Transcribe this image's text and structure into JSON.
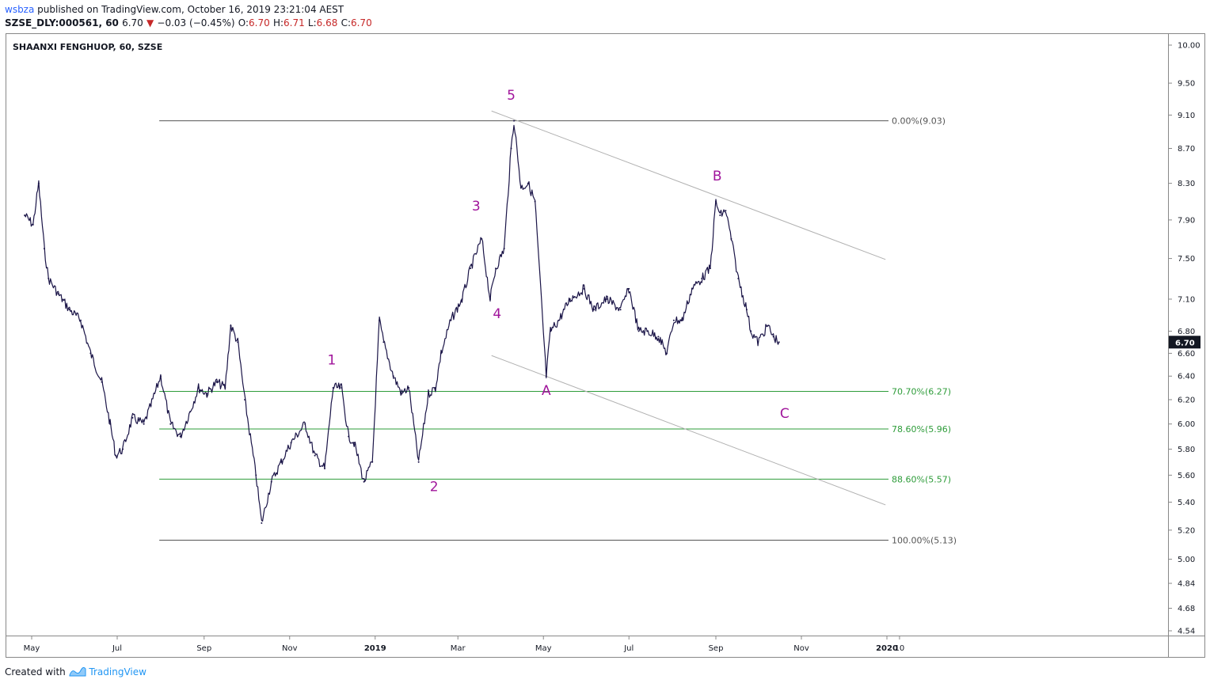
{
  "header": {
    "user": "wsbza",
    "published": "published on TradingView.com, October 16, 2019 23:21:04 AEST",
    "symbol_line": "SZSE_DLY:000561, 60",
    "last": "6.70",
    "change_arrow": "▼",
    "change": "−0.03 (−0.45%)",
    "o_label": "O:",
    "o": "6.70",
    "h_label": "H:",
    "h": "6.71",
    "l_label": "L:",
    "l": "6.68",
    "c_label": "C:",
    "c": "6.70"
  },
  "chart_title": "SHAANXI FENGHUOP, 60, SZSE",
  "footer": {
    "created": "Created with",
    "brand": "TradingView"
  },
  "colors": {
    "candle": "#1a1447",
    "wave": "#a0149b",
    "fib_green": "#2e9c3a",
    "fib_gray": "#555555",
    "channel": "#b0b0b0",
    "price_tag": "#131722"
  },
  "chart_data": {
    "type": "line",
    "title": "SHAANXI FENGHUOP, 60, SZSE",
    "xlabel": "",
    "ylabel": "",
    "ylim": [
      4.54,
      10.0
    ],
    "y_scale": "log",
    "y_ticks": [
      "10.00",
      "9.50",
      "9.10",
      "8.70",
      "8.30",
      "7.90",
      "7.50",
      "7.10",
      "6.80",
      "6.60",
      "6.40",
      "6.20",
      "6.00",
      "5.80",
      "5.60",
      "5.40",
      "5.20",
      "5.00",
      "4.84",
      "4.68",
      "4.54"
    ],
    "x_ticks": [
      {
        "label": "May",
        "date": "2018-05-01"
      },
      {
        "label": "Jul",
        "date": "2018-07-01"
      },
      {
        "label": "Sep",
        "date": "2018-09-01"
      },
      {
        "label": "Nov",
        "date": "2018-11-01"
      },
      {
        "label": "2019",
        "date": "2019-01-01"
      },
      {
        "label": "Mar",
        "date": "2019-03-01"
      },
      {
        "label": "May",
        "date": "2019-05-01"
      },
      {
        "label": "Jul",
        "date": "2019-07-01"
      },
      {
        "label": "Sep",
        "date": "2019-09-01"
      },
      {
        "label": "Nov",
        "date": "2019-11-01"
      },
      {
        "label": "2020",
        "date": "2020-01-01"
      },
      {
        "label": "10",
        "date": "2020-01-10"
      }
    ],
    "series": [
      {
        "name": "000561 close (approx.)",
        "x": [
          "2018-04-26",
          "2018-05-02",
          "2018-05-06",
          "2018-05-10",
          "2018-05-13",
          "2018-05-20",
          "2018-05-28",
          "2018-06-05",
          "2018-06-12",
          "2018-06-20",
          "2018-06-26",
          "2018-06-30",
          "2018-07-05",
          "2018-07-12",
          "2018-07-20",
          "2018-07-25",
          "2018-08-01",
          "2018-08-08",
          "2018-08-15",
          "2018-08-22",
          "2018-08-28",
          "2018-09-03",
          "2018-09-10",
          "2018-09-16",
          "2018-09-20",
          "2018-09-25",
          "2018-09-30",
          "2018-10-08",
          "2018-10-12",
          "2018-10-19",
          "2018-10-26",
          "2018-11-02",
          "2018-11-12",
          "2018-11-19",
          "2018-11-26",
          "2018-12-02",
          "2018-12-08",
          "2018-12-13",
          "2018-12-17",
          "2018-12-24",
          "2018-12-30",
          "2019-01-04",
          "2019-01-07",
          "2019-01-14",
          "2019-01-20",
          "2019-01-25",
          "2019-02-01",
          "2019-02-08",
          "2019-02-13",
          "2019-02-17",
          "2019-02-24",
          "2019-03-04",
          "2019-03-10",
          "2019-03-18",
          "2019-03-24",
          "2019-03-28",
          "2019-04-03",
          "2019-04-08",
          "2019-04-10",
          "2019-04-15",
          "2019-04-20",
          "2019-04-25",
          "2019-05-03",
          "2019-05-06",
          "2019-05-12",
          "2019-05-20",
          "2019-05-30",
          "2019-06-06",
          "2019-06-15",
          "2019-06-25",
          "2019-07-01",
          "2019-07-08",
          "2019-07-14",
          "2019-07-22",
          "2019-07-28",
          "2019-08-02",
          "2019-08-08",
          "2019-08-15",
          "2019-08-22",
          "2019-08-28",
          "2019-09-01",
          "2019-09-04",
          "2019-09-08",
          "2019-09-12",
          "2019-09-17",
          "2019-09-23",
          "2019-09-26",
          "2019-10-01",
          "2019-10-08",
          "2019-10-12",
          "2019-10-16"
        ],
        "values": [
          7.95,
          7.85,
          8.3,
          7.6,
          7.3,
          7.15,
          7.0,
          6.9,
          6.6,
          6.35,
          6.0,
          5.75,
          5.8,
          6.05,
          6.0,
          6.15,
          6.4,
          6.0,
          5.9,
          6.1,
          6.3,
          6.25,
          6.35,
          6.3,
          6.85,
          6.7,
          6.2,
          5.6,
          5.25,
          5.55,
          5.7,
          5.85,
          6.0,
          5.75,
          5.65,
          6.3,
          6.3,
          5.9,
          5.85,
          5.55,
          5.7,
          6.9,
          6.7,
          6.4,
          6.25,
          6.3,
          5.7,
          6.25,
          6.3,
          6.6,
          6.9,
          7.1,
          7.4,
          7.7,
          7.1,
          7.4,
          7.6,
          8.7,
          9.03,
          8.25,
          8.3,
          8.1,
          6.4,
          6.8,
          6.9,
          7.1,
          7.2,
          7.0,
          7.1,
          7.0,
          7.2,
          6.8,
          6.8,
          6.75,
          6.6,
          6.9,
          6.9,
          7.2,
          7.3,
          7.4,
          8.1,
          7.95,
          8.0,
          7.7,
          7.3,
          7.0,
          6.8,
          6.7,
          6.85,
          6.75,
          6.7
        ]
      }
    ],
    "annotations": [
      {
        "text": "1",
        "date": "2018-12-01",
        "price": 6.5,
        "color": "wave"
      },
      {
        "text": "2",
        "date": "2019-02-12",
        "price": 5.48,
        "color": "wave"
      },
      {
        "text": "3",
        "date": "2019-03-14",
        "price": 8.0,
        "color": "wave"
      },
      {
        "text": "4",
        "date": "2019-03-29",
        "price": 6.92,
        "color": "wave"
      },
      {
        "text": "5",
        "date": "2019-04-08",
        "price": 9.29,
        "color": "wave"
      },
      {
        "text": "A",
        "date": "2019-05-03",
        "price": 6.24,
        "color": "wave"
      },
      {
        "text": "B",
        "date": "2019-09-02",
        "price": 8.33,
        "color": "wave"
      },
      {
        "text": "C",
        "date": "2019-10-20",
        "price": 6.05,
        "color": "wave"
      }
    ],
    "fib_levels": [
      {
        "label": "0.00%(9.03)",
        "price": 9.03,
        "color": "fib_gray",
        "start": "2018-07-31"
      },
      {
        "label": "70.70%(6.27)",
        "price": 6.27,
        "color": "fib_green",
        "start": "2018-07-31"
      },
      {
        "label": "78.60%(5.96)",
        "price": 5.96,
        "color": "fib_green",
        "start": "2018-07-31"
      },
      {
        "label": "88.60%(5.57)",
        "price": 5.57,
        "color": "fib_green",
        "start": "2018-07-31"
      },
      {
        "label": "100.00%(5.13)",
        "price": 5.13,
        "color": "fib_gray",
        "start": "2018-07-31"
      }
    ],
    "trend_lines": [
      {
        "from": {
          "date": "2019-03-25",
          "price": 9.15
        },
        "to": {
          "date": "2019-12-31",
          "price": 7.49
        }
      },
      {
        "from": {
          "date": "2019-03-25",
          "price": 6.58
        },
        "to": {
          "date": "2019-12-31",
          "price": 5.38
        }
      }
    ],
    "last_price": {
      "value": "6.70",
      "price": 6.7
    },
    "legend": "none",
    "grid": false
  }
}
